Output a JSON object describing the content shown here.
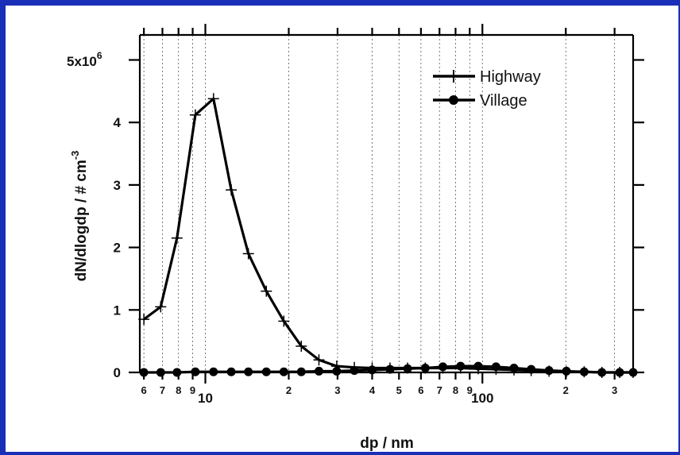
{
  "chart_data": {
    "type": "line",
    "title": "",
    "xlabel": "dp / nm",
    "ylabel": "dN/dlogdp / # cm",
    "ylabel_superscript": "-3",
    "x_scale": "log",
    "xlim": [
      5.8,
      350
    ],
    "ylim": [
      0,
      5.4
    ],
    "y_multiplier_label": "5x10",
    "y_multiplier_exponent": "6",
    "y_ticks": [
      {
        "value": 0,
        "label": "0"
      },
      {
        "value": 1,
        "label": "1"
      },
      {
        "value": 2,
        "label": "2"
      },
      {
        "value": 3,
        "label": "3"
      },
      {
        "value": 4,
        "label": "4"
      },
      {
        "value": 5,
        "label": ""
      }
    ],
    "x_major_ticks": [
      {
        "value": 10,
        "label": "10"
      },
      {
        "value": 100,
        "label": "100"
      }
    ],
    "x_minor_ticks": [
      {
        "value": 6,
        "label": "6"
      },
      {
        "value": 7,
        "label": "7"
      },
      {
        "value": 8,
        "label": "8"
      },
      {
        "value": 9,
        "label": "9"
      },
      {
        "value": 20,
        "label": "2"
      },
      {
        "value": 30,
        "label": "3"
      },
      {
        "value": 40,
        "label": "4"
      },
      {
        "value": 50,
        "label": "5"
      },
      {
        "value": 60,
        "label": "6"
      },
      {
        "value": 70,
        "label": "7"
      },
      {
        "value": 80,
        "label": "8"
      },
      {
        "value": 90,
        "label": "9"
      },
      {
        "value": 200,
        "label": "2"
      },
      {
        "value": 300,
        "label": "3"
      }
    ],
    "grid": "vertical dotted at x ticks",
    "legend_position": "top-right",
    "series": [
      {
        "name": "Highway",
        "marker": "plus",
        "color": "#000000",
        "x": [
          6.0,
          6.9,
          7.9,
          9.2,
          10.7,
          12.4,
          14.3,
          16.6,
          19.2,
          22.2,
          25.7,
          29.8,
          34.5,
          40.0,
          46.4,
          53.7,
          62.2,
          72.0,
          83.4,
          96.6,
          112,
          130,
          150,
          174,
          201,
          233,
          270,
          313,
          350
        ],
        "y": [
          0.85,
          1.05,
          2.15,
          4.12,
          4.38,
          2.92,
          1.9,
          1.3,
          0.82,
          0.42,
          0.2,
          0.1,
          0.08,
          0.07,
          0.07,
          0.07,
          0.07,
          0.07,
          0.07,
          0.06,
          0.05,
          0.04,
          0.03,
          0.02,
          0.01,
          0.01,
          0.0,
          0.0,
          0.0
        ]
      },
      {
        "name": "Village",
        "marker": "circle",
        "color": "#000000",
        "x": [
          6.0,
          6.9,
          7.9,
          9.2,
          10.7,
          12.4,
          14.3,
          16.6,
          19.2,
          22.2,
          25.7,
          29.8,
          34.5,
          40.0,
          46.4,
          53.7,
          62.2,
          72.0,
          83.4,
          96.6,
          112,
          130,
          150,
          174,
          201,
          233,
          270,
          313,
          350
        ],
        "y": [
          0.0,
          0.0,
          0.0,
          0.01,
          0.01,
          0.01,
          0.01,
          0.01,
          0.01,
          0.01,
          0.02,
          0.02,
          0.03,
          0.04,
          0.05,
          0.06,
          0.07,
          0.09,
          0.1,
          0.1,
          0.09,
          0.07,
          0.05,
          0.03,
          0.02,
          0.01,
          0.0,
          0.0,
          0.0
        ]
      }
    ]
  }
}
